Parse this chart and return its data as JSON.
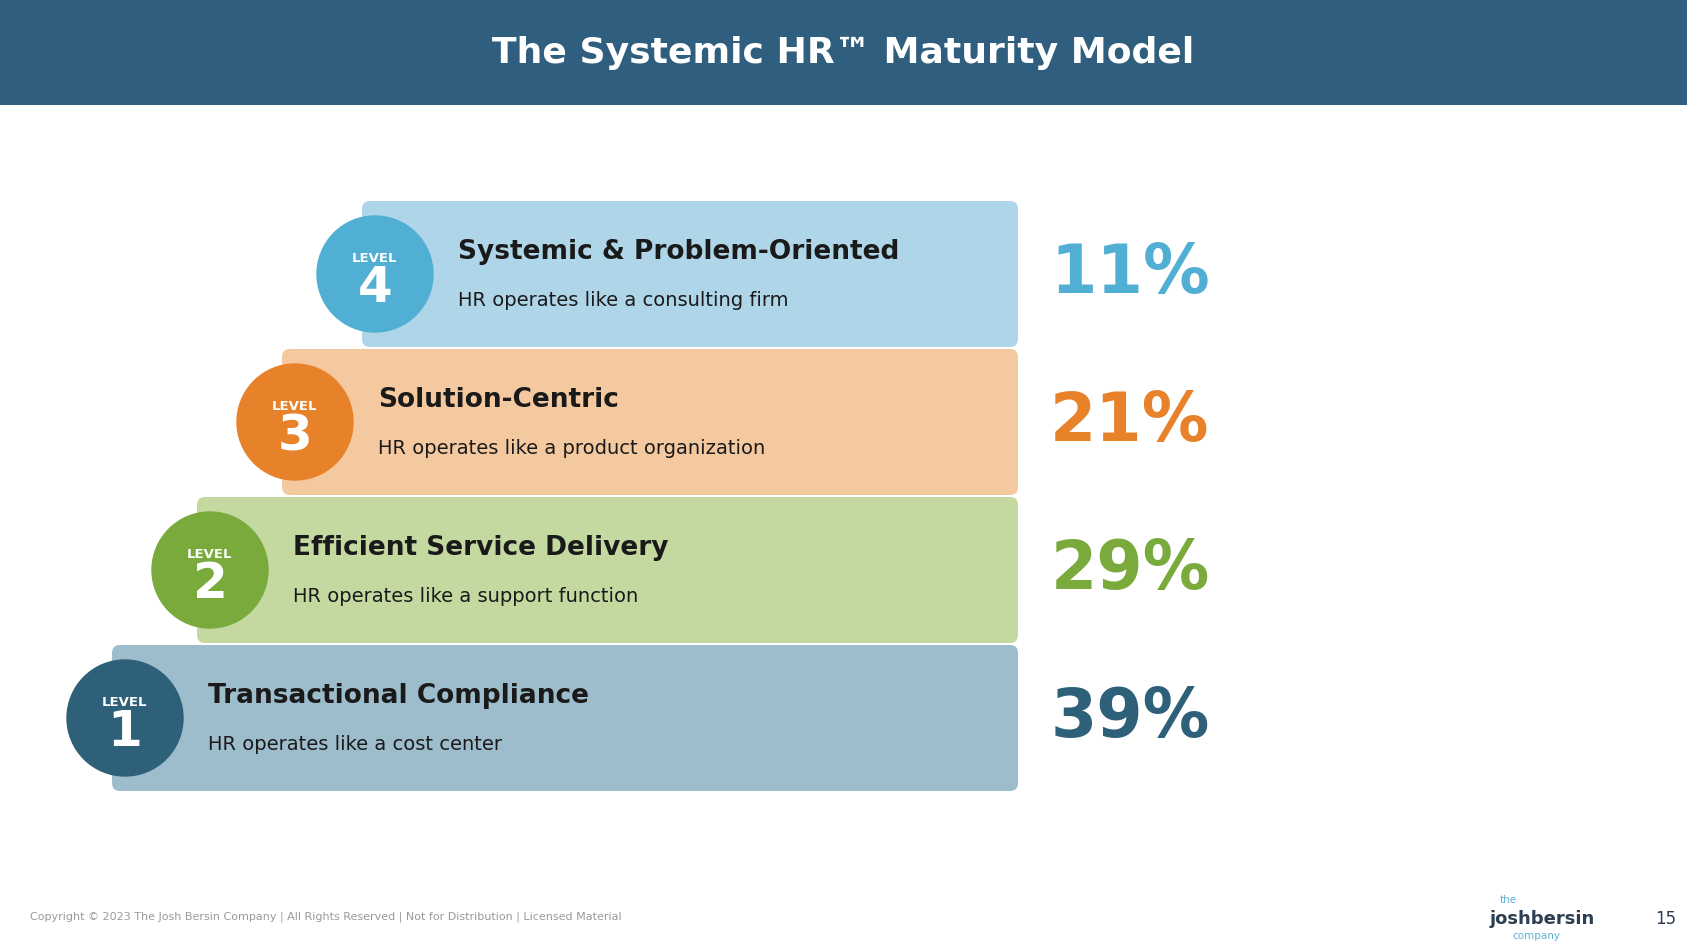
{
  "title": "The Systemic HR™ Maturity Model",
  "title_color": "#ffffff",
  "title_fontsize": 26,
  "header_bg_dark": "#2c5570",
  "header_bg_mid": "#3a7099",
  "bg_color": "#ffffff",
  "footer_text": "Copyright © 2023 The Josh Bersin Company | All Rights Reserved | Not for Distribution | Licensed Material",
  "footer_color": "#999999",
  "page_number": "15",
  "fig_width": 16.87,
  "fig_height": 9.47,
  "dpi": 100,
  "levels": [
    {
      "level_num": "4",
      "title": "Systemic & Problem-Oriented",
      "subtitle": "HR operates like a consulting firm",
      "percentage": "11%",
      "box_color": "#aed6e8",
      "circle_color": "#52afd4",
      "pct_color": "#52afd4",
      "text_color": "#1a1a1a"
    },
    {
      "level_num": "3",
      "title": "Solution-Centric",
      "subtitle": "HR operates like a product organization",
      "percentage": "21%",
      "box_color": "#f5c9a0",
      "circle_color": "#e8822a",
      "pct_color": "#e8822a",
      "text_color": "#1a1a1a"
    },
    {
      "level_num": "2",
      "title": "Efficient Service Delivery",
      "subtitle": "HR operates like a support function",
      "percentage": "29%",
      "box_color": "#c3d9a0",
      "circle_color": "#7aaa3c",
      "pct_color": "#7aaa3c",
      "text_color": "#1a1a1a"
    },
    {
      "level_num": "1",
      "title": "Transactional Compliance",
      "subtitle": "HR operates like a cost center",
      "percentage": "39%",
      "box_color": "#9dbdcc",
      "circle_color": "#2e6079",
      "pct_color": "#2e6079",
      "text_color": "#1a1a1a"
    }
  ]
}
